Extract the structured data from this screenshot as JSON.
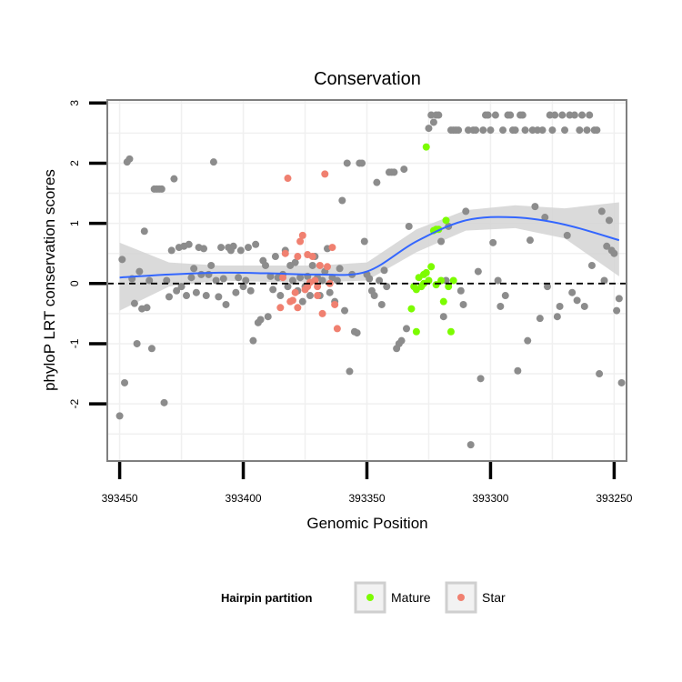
{
  "chart_data": {
    "type": "scatter",
    "title": "Conservation",
    "xlabel": "Genomic Position",
    "ylabel": "phyloP LRT conservation scores",
    "xlim": [
      393455,
      393245
    ],
    "x_reversed": true,
    "ylim": [
      -2.95,
      3.05
    ],
    "x_ticks": [
      393450,
      393400,
      393350,
      393300,
      393250
    ],
    "x_tick_labels": [
      "393450",
      "393400",
      "393350",
      "393300",
      "393250"
    ],
    "y_ticks": [
      -2,
      -1,
      0,
      1,
      2,
      3
    ],
    "y_tick_labels": [
      "-2",
      "-1",
      "0",
      "1",
      "2",
      "3"
    ],
    "grid": true,
    "reference_line": {
      "y": 0,
      "style": "dashed",
      "color": "#000000"
    },
    "colors": {
      "other": "#8c8c8c",
      "mature": "#7CFC00",
      "star": "#F08070",
      "smooth": "#3366FF",
      "band": "#D3D3D3"
    },
    "legend": {
      "title": "Hairpin partition",
      "placement": "bottom",
      "entries": [
        {
          "label": "Mature",
          "color": "#7CFC00"
        },
        {
          "label": "Star",
          "color": "#F08070"
        }
      ]
    },
    "series": [
      {
        "key": "other",
        "color": "#8c8c8c",
        "points": [
          [
            393450,
            -2.2
          ],
          [
            393449,
            0.4
          ],
          [
            393448,
            -1.65
          ],
          [
            393447,
            2.02
          ],
          [
            393446,
            2.07
          ],
          [
            393445,
            0.08
          ],
          [
            393444,
            -0.33
          ],
          [
            393443,
            -1.0
          ],
          [
            393442,
            0.2
          ],
          [
            393441,
            -0.42
          ],
          [
            393440,
            0.87
          ],
          [
            393439,
            -0.4
          ],
          [
            393438,
            0.05
          ],
          [
            393437,
            -1.08
          ],
          [
            393436,
            1.57
          ],
          [
            393435,
            1.57
          ],
          [
            393434,
            1.57
          ],
          [
            393433,
            1.57
          ],
          [
            393432,
            -1.98
          ],
          [
            393431,
            0.05
          ],
          [
            393430,
            -0.22
          ],
          [
            393429,
            0.55
          ],
          [
            393428,
            1.74
          ],
          [
            393427,
            -0.12
          ],
          [
            393426,
            0.6
          ],
          [
            393425,
            -0.05
          ],
          [
            393424,
            0.62
          ],
          [
            393423,
            -0.2
          ],
          [
            393422,
            0.65
          ],
          [
            393421,
            0.1
          ],
          [
            393420,
            0.25
          ],
          [
            393419,
            -0.15
          ],
          [
            393418,
            0.6
          ],
          [
            393417,
            0.15
          ],
          [
            393416,
            0.58
          ],
          [
            393415,
            -0.2
          ],
          [
            393414,
            0.15
          ],
          [
            393413,
            0.3
          ],
          [
            393412,
            2.02
          ],
          [
            393411,
            0.05
          ],
          [
            393410,
            -0.22
          ],
          [
            393409,
            0.6
          ],
          [
            393408,
            0.08
          ],
          [
            393407,
            -0.35
          ],
          [
            393406,
            0.6
          ],
          [
            393405,
            0.55
          ],
          [
            393404,
            0.62
          ],
          [
            393403,
            -0.15
          ],
          [
            393402,
            0.1
          ],
          [
            393401,
            0.55
          ],
          [
            393400,
            -0.05
          ],
          [
            393399,
            0.05
          ],
          [
            393398,
            0.6
          ],
          [
            393397,
            -0.12
          ],
          [
            393396,
            -0.95
          ],
          [
            393395,
            0.65
          ],
          [
            393394,
            -0.65
          ],
          [
            393393,
            -0.6
          ],
          [
            393392,
            0.38
          ],
          [
            393391,
            0.3
          ],
          [
            393390,
            -0.55
          ],
          [
            393389,
            0.12
          ],
          [
            393388,
            -0.1
          ],
          [
            393387,
            0.45
          ],
          [
            393386,
            0.1
          ],
          [
            393385,
            -0.2
          ],
          [
            393384,
            0.15
          ],
          [
            393383,
            0.55
          ],
          [
            393382,
            -0.05
          ],
          [
            393381,
            0.3
          ],
          [
            393380,
            0.05
          ],
          [
            393379,
            0.35
          ],
          [
            393378,
            -0.12
          ],
          [
            393377,
            0.1
          ],
          [
            393376,
            -0.3
          ],
          [
            393375,
            -0.05
          ],
          [
            393374,
            0.12
          ],
          [
            393373,
            -0.2
          ],
          [
            393372,
            0.3
          ],
          [
            393371,
            0.45
          ],
          [
            393370,
            0.1
          ],
          [
            393369,
            -0.2
          ],
          [
            393368,
            0.05
          ],
          [
            393367,
            0.2
          ],
          [
            393366,
            0.58
          ],
          [
            393365,
            -0.15
          ],
          [
            393364,
            0.1
          ],
          [
            393363,
            -0.3
          ],
          [
            393362,
            0.05
          ],
          [
            393361,
            0.25
          ],
          [
            393360,
            1.38
          ],
          [
            393359,
            -0.45
          ],
          [
            393358,
            2.0
          ],
          [
            393357,
            -1.46
          ],
          [
            393356,
            0.15
          ],
          [
            393355,
            -0.8
          ],
          [
            393354,
            -0.82
          ],
          [
            393353,
            2.0
          ],
          [
            393352,
            2.0
          ],
          [
            393351,
            0.7
          ],
          [
            393350,
            0.15
          ],
          [
            393349,
            0.08
          ],
          [
            393348,
            -0.12
          ],
          [
            393347,
            -0.2
          ],
          [
            393346,
            1.68
          ],
          [
            393345,
            0.05
          ],
          [
            393344,
            -0.35
          ],
          [
            393343,
            0.22
          ],
          [
            393342,
            -0.05
          ],
          [
            393341,
            1.85
          ],
          [
            393340,
            1.85
          ],
          [
            393339,
            1.85
          ],
          [
            393338,
            -1.08
          ],
          [
            393337,
            -1.0
          ],
          [
            393336,
            -0.95
          ],
          [
            393335,
            1.9
          ],
          [
            393334,
            -0.75
          ],
          [
            393333,
            0.95
          ],
          [
            393325,
            2.58
          ],
          [
            393324,
            2.8
          ],
          [
            393323,
            2.68
          ],
          [
            393322,
            2.8
          ],
          [
            393321,
            2.8
          ],
          [
            393320,
            0.7
          ],
          [
            393319,
            -0.55
          ],
          [
            393318,
            0.05
          ],
          [
            393317,
            0.95
          ],
          [
            393316,
            2.55
          ],
          [
            393315,
            2.55
          ],
          [
            393314,
            2.55
          ],
          [
            393313,
            2.55
          ],
          [
            393312,
            -0.12
          ],
          [
            393311,
            -0.35
          ],
          [
            393310,
            1.2
          ],
          [
            393309,
            2.55
          ],
          [
            393308,
            -2.68
          ],
          [
            393307,
            2.55
          ],
          [
            393306,
            2.55
          ],
          [
            393305,
            0.2
          ],
          [
            393304,
            -1.58
          ],
          [
            393303,
            2.55
          ],
          [
            393302,
            2.8
          ],
          [
            393301,
            2.8
          ],
          [
            393300,
            2.55
          ],
          [
            393299,
            0.68
          ],
          [
            393298,
            2.8
          ],
          [
            393297,
            0.05
          ],
          [
            393296,
            -0.38
          ],
          [
            393295,
            2.55
          ],
          [
            393294,
            -0.2
          ],
          [
            393293,
            2.8
          ],
          [
            393292,
            2.8
          ],
          [
            393291,
            2.55
          ],
          [
            393290,
            2.55
          ],
          [
            393289,
            -1.45
          ],
          [
            393288,
            2.8
          ],
          [
            393287,
            2.8
          ],
          [
            393286,
            2.55
          ],
          [
            393285,
            -0.95
          ],
          [
            393284,
            0.72
          ],
          [
            393283,
            2.55
          ],
          [
            393282,
            1.28
          ],
          [
            393281,
            2.55
          ],
          [
            393280,
            -0.58
          ],
          [
            393279,
            2.55
          ],
          [
            393278,
            1.1
          ],
          [
            393277,
            -0.05
          ],
          [
            393276,
            2.8
          ],
          [
            393275,
            2.55
          ],
          [
            393274,
            2.8
          ],
          [
            393273,
            -0.55
          ],
          [
            393272,
            -0.38
          ],
          [
            393271,
            2.8
          ],
          [
            393270,
            2.55
          ],
          [
            393269,
            0.8
          ],
          [
            393268,
            2.8
          ],
          [
            393267,
            -0.15
          ],
          [
            393266,
            2.8
          ],
          [
            393265,
            -0.28
          ],
          [
            393264,
            2.55
          ],
          [
            393263,
            2.8
          ],
          [
            393262,
            -0.38
          ],
          [
            393261,
            2.55
          ],
          [
            393260,
            2.8
          ],
          [
            393259,
            0.3
          ],
          [
            393258,
            2.55
          ],
          [
            393257,
            2.55
          ],
          [
            393256,
            -1.5
          ],
          [
            393255,
            1.2
          ],
          [
            393254,
            0.05
          ],
          [
            393253,
            0.62
          ],
          [
            393252,
            1.05
          ],
          [
            393251,
            0.55
          ],
          [
            393250,
            0.5
          ],
          [
            393249,
            -0.45
          ],
          [
            393248,
            -0.25
          ],
          [
            393247,
            -1.65
          ]
        ]
      },
      {
        "key": "mature",
        "color": "#7CFC00",
        "points": [
          [
            393332,
            -0.42
          ],
          [
            393331,
            -0.05
          ],
          [
            393330,
            -0.8
          ],
          [
            393329,
            0.1
          ],
          [
            393328,
            -0.05
          ],
          [
            393327,
            0.0
          ],
          [
            393326,
            0.18
          ],
          [
            393325,
            0.05
          ],
          [
            393324,
            0.28
          ],
          [
            393323,
            0.88
          ],
          [
            393322,
            0.9
          ],
          [
            393321,
            0.9
          ],
          [
            393320,
            0.05
          ],
          [
            393319,
            -0.3
          ],
          [
            393318,
            1.05
          ],
          [
            393317,
            -0.05
          ],
          [
            393316,
            -0.8
          ],
          [
            393315,
            0.05
          ],
          [
            393326,
            2.27
          ],
          [
            393330,
            -0.1
          ],
          [
            393327,
            0.15
          ],
          [
            393322,
            -0.02
          ]
        ]
      },
      {
        "key": "star",
        "color": "#F08070",
        "points": [
          [
            393385,
            -0.4
          ],
          [
            393384,
            0.1
          ],
          [
            393383,
            0.5
          ],
          [
            393382,
            1.75
          ],
          [
            393381,
            -0.3
          ],
          [
            393380,
            -0.28
          ],
          [
            393379,
            -0.15
          ],
          [
            393378,
            0.45
          ],
          [
            393377,
            0.7
          ],
          [
            393376,
            0.8
          ],
          [
            393375,
            -0.1
          ],
          [
            393374,
            0.48
          ],
          [
            393373,
            0.02
          ],
          [
            393372,
            0.45
          ],
          [
            393371,
            0.05
          ],
          [
            393370,
            -0.05
          ],
          [
            393369,
            0.3
          ],
          [
            393368,
            -0.5
          ],
          [
            393367,
            1.82
          ],
          [
            393366,
            0.28
          ],
          [
            393365,
            0.0
          ],
          [
            393364,
            0.6
          ],
          [
            393363,
            -0.35
          ],
          [
            393362,
            -0.75
          ],
          [
            393370,
            -0.2
          ],
          [
            393374,
            -0.05
          ],
          [
            393378,
            -0.4
          ]
        ]
      }
    ],
    "smooth": {
      "x": [
        393450,
        393430,
        393410,
        393390,
        393370,
        393350,
        393330,
        393310,
        393290,
        393270,
        393248
      ],
      "y": [
        0.1,
        0.15,
        0.18,
        0.17,
        0.15,
        0.2,
        0.7,
        1.05,
        1.1,
        0.98,
        0.72
      ],
      "lower": [
        -0.45,
        -0.05,
        0.05,
        0.03,
        0.02,
        0.05,
        0.52,
        0.88,
        0.92,
        0.75,
        0.12
      ],
      "upper": [
        0.68,
        0.35,
        0.3,
        0.3,
        0.3,
        0.35,
        0.9,
        1.22,
        1.3,
        1.25,
        1.35
      ]
    }
  }
}
